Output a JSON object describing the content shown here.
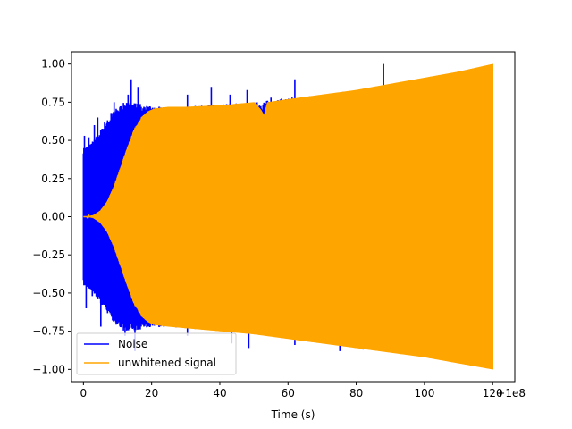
{
  "chart_data": {
    "type": "line",
    "title": "",
    "xlabel": "Time (s)",
    "ylabel": "",
    "x_offset_label": "+1e8",
    "xlim": [
      -3.5,
      126.5
    ],
    "ylim": [
      -1.08,
      1.08
    ],
    "xticks": [
      0,
      20,
      40,
      60,
      80,
      100,
      120
    ],
    "yticks": [
      -1.0,
      -0.75,
      -0.5,
      -0.25,
      0.0,
      0.25,
      0.5,
      0.75,
      1.0
    ],
    "xtick_labels": [
      "0",
      "20",
      "40",
      "60",
      "80",
      "100",
      "120"
    ],
    "ytick_labels": [
      "−1.00",
      "−0.75",
      "−0.50",
      "−0.25",
      "0.00",
      "0.25",
      "0.50",
      "0.75",
      "1.00"
    ],
    "grid": false,
    "legend_position": "lower-left",
    "series": [
      {
        "name": "Noise",
        "color": "#0000ff",
        "envelope_upper": [
          [
            0,
            0.45
          ],
          [
            3,
            0.5
          ],
          [
            6,
            0.6
          ],
          [
            9,
            0.7
          ],
          [
            12,
            0.75
          ],
          [
            15,
            0.75
          ],
          [
            20,
            0.72
          ],
          [
            30,
            0.72
          ],
          [
            40,
            0.74
          ],
          [
            50,
            0.75
          ],
          [
            60,
            0.78
          ],
          [
            70,
            0.8
          ],
          [
            80,
            0.83
          ],
          [
            90,
            0.86
          ],
          [
            100,
            0.9
          ],
          [
            110,
            0.95
          ],
          [
            120,
            0.99
          ]
        ],
        "envelope_lower": [
          [
            0,
            -0.45
          ],
          [
            3,
            -0.5
          ],
          [
            6,
            -0.6
          ],
          [
            9,
            -0.7
          ],
          [
            12,
            -0.75
          ],
          [
            15,
            -0.75
          ],
          [
            20,
            -0.72
          ],
          [
            30,
            -0.73
          ],
          [
            40,
            -0.75
          ],
          [
            50,
            -0.77
          ],
          [
            60,
            -0.8
          ],
          [
            70,
            -0.82
          ],
          [
            80,
            -0.85
          ],
          [
            90,
            -0.88
          ],
          [
            100,
            -0.92
          ],
          [
            110,
            -0.96
          ],
          [
            120,
            -1.0
          ]
        ],
        "spikes": [
          [
            0.3,
            0.53
          ],
          [
            0.8,
            -0.6
          ],
          [
            1.6,
            0.52
          ],
          [
            2.6,
            -0.52
          ],
          [
            3.2,
            0.6
          ],
          [
            4.2,
            0.65
          ],
          [
            5.1,
            -0.72
          ],
          [
            6.2,
            0.62
          ],
          [
            7.0,
            -0.6
          ],
          [
            8.1,
            0.68
          ],
          [
            9.0,
            0.75
          ],
          [
            10.0,
            -0.7
          ],
          [
            11.4,
            0.68
          ],
          [
            12.2,
            -0.78
          ],
          [
            13.1,
            0.8
          ],
          [
            14.0,
            0.9
          ],
          [
            15.1,
            -0.88
          ],
          [
            16.0,
            0.85
          ],
          [
            17.3,
            -0.7
          ],
          [
            30.5,
            0.8
          ],
          [
            30.5,
            -0.78
          ],
          [
            37.5,
            0.85
          ],
          [
            43.0,
            0.8
          ],
          [
            43.5,
            -0.83
          ],
          [
            48.0,
            0.83
          ],
          [
            48.5,
            -0.86
          ],
          [
            55.0,
            0.78
          ],
          [
            62.0,
            0.9
          ],
          [
            62.0,
            -0.84
          ],
          [
            75.2,
            -0.88
          ],
          [
            82.0,
            -0.87
          ],
          [
            88.0,
            1.0
          ],
          [
            105.0,
            -0.88
          ]
        ]
      },
      {
        "name": "unwhitened signal",
        "color": "#ffa500",
        "envelope_upper": [
          [
            0,
            0.0
          ],
          [
            1,
            0.0
          ],
          [
            3,
            0.01
          ],
          [
            5,
            0.04
          ],
          [
            7,
            0.1
          ],
          [
            9,
            0.2
          ],
          [
            11,
            0.33
          ],
          [
            13,
            0.46
          ],
          [
            15,
            0.58
          ],
          [
            17,
            0.65
          ],
          [
            19,
            0.69
          ],
          [
            21,
            0.71
          ],
          [
            25,
            0.72
          ],
          [
            30,
            0.72
          ],
          [
            40,
            0.73
          ],
          [
            50,
            0.75
          ],
          [
            52,
            0.7
          ],
          [
            53,
            0.66
          ],
          [
            54,
            0.75
          ],
          [
            60,
            0.77
          ],
          [
            70,
            0.8
          ],
          [
            80,
            0.83
          ],
          [
            90,
            0.87
          ],
          [
            100,
            0.91
          ],
          [
            110,
            0.95
          ],
          [
            120,
            1.0
          ]
        ],
        "envelope_lower": [
          [
            0,
            0.0
          ],
          [
            1,
            0.0
          ],
          [
            3,
            -0.01
          ],
          [
            5,
            -0.04
          ],
          [
            7,
            -0.1
          ],
          [
            9,
            -0.2
          ],
          [
            11,
            -0.33
          ],
          [
            13,
            -0.46
          ],
          [
            15,
            -0.58
          ],
          [
            17,
            -0.65
          ],
          [
            19,
            -0.69
          ],
          [
            21,
            -0.71
          ],
          [
            25,
            -0.72
          ],
          [
            30,
            -0.73
          ],
          [
            40,
            -0.75
          ],
          [
            50,
            -0.77
          ],
          [
            60,
            -0.8
          ],
          [
            70,
            -0.83
          ],
          [
            80,
            -0.86
          ],
          [
            90,
            -0.89
          ],
          [
            100,
            -0.92
          ],
          [
            110,
            -0.96
          ],
          [
            120,
            -1.0
          ]
        ]
      }
    ]
  }
}
